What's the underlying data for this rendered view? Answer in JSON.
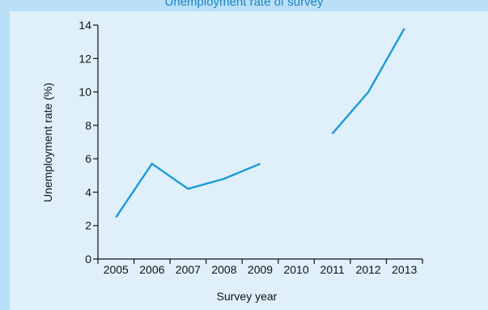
{
  "header": {
    "title_partial": "Unemployment rate of survey"
  },
  "chart_data": {
    "type": "line",
    "xlabel": "Survey year",
    "ylabel": "Unemployment rate (%)",
    "categories": [
      "2005",
      "2006",
      "2007",
      "2008",
      "2009",
      "2010",
      "2011",
      "2012",
      "2013"
    ],
    "yticks": [
      0,
      2,
      4,
      6,
      8,
      10,
      12,
      14
    ],
    "ylim": [
      0,
      14
    ],
    "series": [
      {
        "values": [
          2.5,
          5.7,
          4.2,
          4.8,
          5.7,
          null,
          7.5,
          10.0,
          13.8
        ]
      }
    ],
    "grid": false,
    "colors": {
      "line": "#1a9ad6",
      "axis": "#111111",
      "background": "#dff0fa",
      "band": "#b9dff6"
    }
  }
}
